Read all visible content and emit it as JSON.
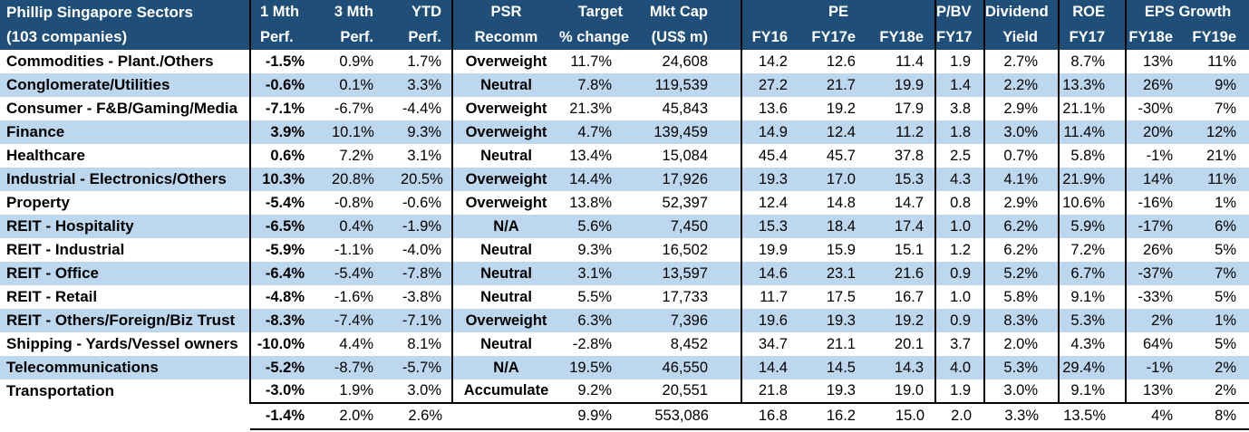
{
  "colors": {
    "header_bg": "#1F4E79",
    "header_text": "#FFFFFF",
    "alt_row_bg": "#BDD7EE",
    "row_bg": "#FFFFFF",
    "body_text": "#000000",
    "divider": "#000000"
  },
  "table": {
    "title_line1": "Phillip Singapore Sectors",
    "title_line2": "(103 companies)",
    "header": {
      "m1": {
        "line1": "1 Mth",
        "line2": "Perf."
      },
      "m3": {
        "line1": "3 Mth",
        "line2": "Perf."
      },
      "ytd": {
        "line1": "YTD",
        "line2": "Perf."
      },
      "recomm": {
        "line1": "PSR",
        "line2": "Recomm"
      },
      "target": {
        "line1": "Target",
        "line2": "% change"
      },
      "mktcap": {
        "line1": "Mkt Cap",
        "line2": "(US$ m)"
      },
      "pe_group": "PE",
      "pe_fy16": "FY16",
      "pe_fy17e": "FY17e",
      "pe_fy18e": "FY18e",
      "pbv": {
        "line1": "P/BV",
        "line2": "FY17"
      },
      "div": {
        "line1": "Dividend",
        "line2": "Yield"
      },
      "roe": {
        "line1": "ROE",
        "line2": "FY17"
      },
      "eps_group": "EPS Growth",
      "eps_fy18e": "FY18e",
      "eps_fy19e": "FY19e"
    },
    "rows": [
      {
        "sector": "Commodities - Plant./Others",
        "m1": "-1.5%",
        "m3": "0.9%",
        "ytd": "1.7%",
        "recomm": "Overweight",
        "target": "11.7%",
        "mktcap": "24,608",
        "pe_fy16": "14.2",
        "pe_fy17e": "12.6",
        "pe_fy18e": "11.4",
        "pbv": "1.9",
        "div_yield": "2.7%",
        "roe": "8.7%",
        "eps_fy18e": "13%",
        "eps_fy19e": "11%"
      },
      {
        "sector": "Conglomerate/Utilities",
        "m1": "-0.6%",
        "m3": "0.1%",
        "ytd": "3.3%",
        "recomm": "Neutral",
        "target": "7.8%",
        "mktcap": "119,539",
        "pe_fy16": "27.2",
        "pe_fy17e": "21.7",
        "pe_fy18e": "19.9",
        "pbv": "1.4",
        "div_yield": "2.2%",
        "roe": "13.3%",
        "eps_fy18e": "26%",
        "eps_fy19e": "9%"
      },
      {
        "sector": "Consumer - F&B/Gaming/Media",
        "m1": "-7.1%",
        "m3": "-6.7%",
        "ytd": "-4.4%",
        "recomm": "Overweight",
        "target": "21.3%",
        "mktcap": "45,843",
        "pe_fy16": "13.6",
        "pe_fy17e": "19.2",
        "pe_fy18e": "17.9",
        "pbv": "3.8",
        "div_yield": "2.9%",
        "roe": "21.1%",
        "eps_fy18e": "-30%",
        "eps_fy19e": "7%"
      },
      {
        "sector": "Finance",
        "m1": "3.9%",
        "m3": "10.1%",
        "ytd": "9.3%",
        "recomm": "Overweight",
        "target": "4.7%",
        "mktcap": "139,459",
        "pe_fy16": "14.9",
        "pe_fy17e": "12.4",
        "pe_fy18e": "11.2",
        "pbv": "1.8",
        "div_yield": "3.0%",
        "roe": "11.4%",
        "eps_fy18e": "20%",
        "eps_fy19e": "12%"
      },
      {
        "sector": "Healthcare",
        "m1": "0.6%",
        "m3": "7.2%",
        "ytd": "3.1%",
        "recomm": "Neutral",
        "target": "13.4%",
        "mktcap": "15,084",
        "pe_fy16": "45.4",
        "pe_fy17e": "45.7",
        "pe_fy18e": "37.8",
        "pbv": "2.5",
        "div_yield": "0.7%",
        "roe": "5.8%",
        "eps_fy18e": "-1%",
        "eps_fy19e": "21%"
      },
      {
        "sector": "Industrial - Electronics/Others",
        "m1": "10.3%",
        "m3": "20.8%",
        "ytd": "20.5%",
        "recomm": "Overweight",
        "target": "14.4%",
        "mktcap": "17,926",
        "pe_fy16": "19.3",
        "pe_fy17e": "17.0",
        "pe_fy18e": "15.3",
        "pbv": "4.3",
        "div_yield": "4.1%",
        "roe": "21.9%",
        "eps_fy18e": "14%",
        "eps_fy19e": "11%"
      },
      {
        "sector": "Property",
        "m1": "-5.4%",
        "m3": "-0.8%",
        "ytd": "-0.6%",
        "recomm": "Overweight",
        "target": "13.8%",
        "mktcap": "52,397",
        "pe_fy16": "12.4",
        "pe_fy17e": "14.8",
        "pe_fy18e": "14.7",
        "pbv": "0.8",
        "div_yield": "2.9%",
        "roe": "10.6%",
        "eps_fy18e": "-16%",
        "eps_fy19e": "1%"
      },
      {
        "sector": "REIT - Hospitality",
        "m1": "-6.5%",
        "m3": "0.4%",
        "ytd": "-1.9%",
        "recomm": "N/A",
        "target": "5.6%",
        "mktcap": "7,450",
        "pe_fy16": "15.3",
        "pe_fy17e": "18.4",
        "pe_fy18e": "17.4",
        "pbv": "1.0",
        "div_yield": "6.2%",
        "roe": "5.9%",
        "eps_fy18e": "-17%",
        "eps_fy19e": "6%"
      },
      {
        "sector": "REIT - Industrial",
        "m1": "-5.9%",
        "m3": "-1.1%",
        "ytd": "-4.0%",
        "recomm": "Neutral",
        "target": "9.3%",
        "mktcap": "16,502",
        "pe_fy16": "19.9",
        "pe_fy17e": "15.9",
        "pe_fy18e": "15.1",
        "pbv": "1.2",
        "div_yield": "6.2%",
        "roe": "7.2%",
        "eps_fy18e": "26%",
        "eps_fy19e": "5%"
      },
      {
        "sector": "REIT - Office",
        "m1": "-6.4%",
        "m3": "-5.4%",
        "ytd": "-7.8%",
        "recomm": "Neutral",
        "target": "3.1%",
        "mktcap": "13,597",
        "pe_fy16": "14.6",
        "pe_fy17e": "23.1",
        "pe_fy18e": "21.6",
        "pbv": "0.9",
        "div_yield": "5.2%",
        "roe": "6.7%",
        "eps_fy18e": "-37%",
        "eps_fy19e": "7%"
      },
      {
        "sector": "REIT - Retail",
        "m1": "-4.8%",
        "m3": "-1.6%",
        "ytd": "-3.8%",
        "recomm": "Neutral",
        "target": "5.5%",
        "mktcap": "17,733",
        "pe_fy16": "11.7",
        "pe_fy17e": "17.5",
        "pe_fy18e": "16.7",
        "pbv": "1.0",
        "div_yield": "5.8%",
        "roe": "9.1%",
        "eps_fy18e": "-33%",
        "eps_fy19e": "5%"
      },
      {
        "sector": "REIT - Others/Foreign/Biz Trust",
        "m1": "-8.3%",
        "m3": "-7.4%",
        "ytd": "-7.1%",
        "recomm": "Overweight",
        "target": "6.3%",
        "mktcap": "7,396",
        "pe_fy16": "19.6",
        "pe_fy17e": "19.3",
        "pe_fy18e": "19.2",
        "pbv": "0.9",
        "div_yield": "8.3%",
        "roe": "5.3%",
        "eps_fy18e": "2%",
        "eps_fy19e": "1%"
      },
      {
        "sector": "Shipping - Yards/Vessel owners",
        "m1": "-10.0%",
        "m3": "4.4%",
        "ytd": "8.1%",
        "recomm": "Neutral",
        "target": "-2.8%",
        "mktcap": "8,452",
        "pe_fy16": "34.7",
        "pe_fy17e": "21.1",
        "pe_fy18e": "20.1",
        "pbv": "3.7",
        "div_yield": "2.0%",
        "roe": "4.3%",
        "eps_fy18e": "64%",
        "eps_fy19e": "5%"
      },
      {
        "sector": "Telecommunications",
        "m1": "-5.2%",
        "m3": "-8.7%",
        "ytd": "-5.7%",
        "recomm": "N/A",
        "target": "19.5%",
        "mktcap": "46,550",
        "pe_fy16": "14.4",
        "pe_fy17e": "14.5",
        "pe_fy18e": "14.3",
        "pbv": "4.0",
        "div_yield": "5.3%",
        "roe": "29.4%",
        "eps_fy18e": "-1%",
        "eps_fy19e": "2%"
      },
      {
        "sector": "Transportation",
        "m1": "-3.0%",
        "m3": "1.9%",
        "ytd": "3.0%",
        "recomm": "Accumulate",
        "target": "9.2%",
        "mktcap": "20,551",
        "pe_fy16": "21.8",
        "pe_fy17e": "19.3",
        "pe_fy18e": "19.0",
        "pbv": "1.9",
        "div_yield": "3.0%",
        "roe": "9.1%",
        "eps_fy18e": "13%",
        "eps_fy19e": "2%"
      }
    ],
    "total": {
      "sector": "",
      "m1": "-1.4%",
      "m3": "2.0%",
      "ytd": "2.6%",
      "recomm": "",
      "target": "9.9%",
      "mktcap": "553,086",
      "pe_fy16": "16.8",
      "pe_fy17e": "16.2",
      "pe_fy18e": "15.0",
      "pbv": "2.0",
      "div_yield": "3.3%",
      "roe": "13.5%",
      "eps_fy18e": "4%",
      "eps_fy19e": "8%"
    }
  }
}
